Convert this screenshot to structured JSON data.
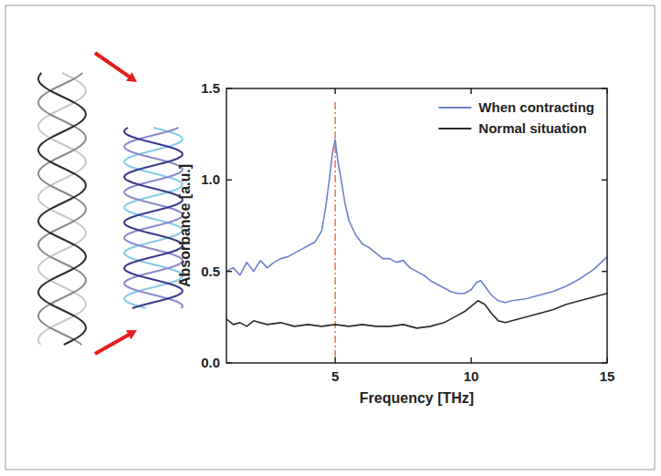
{
  "chart_data": {
    "type": "line",
    "x_label": "Frequency [THz]",
    "y_label": "Absorbance [a.u.]",
    "xlim": [
      1,
      15
    ],
    "xticks": [
      5,
      10,
      15
    ],
    "ylim": [
      0,
      1.5
    ],
    "yticks": [
      {
        "value": 0,
        "label": "0.0"
      },
      {
        "value": 0.5,
        "label": "0.5"
      },
      {
        "value": 1,
        "label": "1.0"
      },
      {
        "value": 1.5,
        "label": "1.5"
      }
    ],
    "legend": "upper right",
    "reference_x": 5,
    "series": [
      {
        "name": "When contracting",
        "color": "#6f80cc",
        "x": [
          1.0,
          1.25,
          1.5,
          1.75,
          2.0,
          2.25,
          2.5,
          2.75,
          3.0,
          3.25,
          3.5,
          3.75,
          4.0,
          4.25,
          4.5,
          4.65,
          4.8,
          4.9,
          5.0,
          5.1,
          5.2,
          5.35,
          5.5,
          5.75,
          6.0,
          6.25,
          6.5,
          6.75,
          7.0,
          7.25,
          7.5,
          7.75,
          8.0,
          8.25,
          8.5,
          8.75,
          9.0,
          9.25,
          9.5,
          9.75,
          10.0,
          10.2,
          10.35,
          10.5,
          10.75,
          11.0,
          11.25,
          11.5,
          12.0,
          12.5,
          13.0,
          13.5,
          14.0,
          14.5,
          15.0
        ],
        "values": [
          0.5,
          0.52,
          0.48,
          0.55,
          0.5,
          0.56,
          0.52,
          0.55,
          0.57,
          0.58,
          0.6,
          0.62,
          0.64,
          0.66,
          0.72,
          0.85,
          1.02,
          1.15,
          1.22,
          1.1,
          1.02,
          0.88,
          0.78,
          0.7,
          0.65,
          0.63,
          0.6,
          0.57,
          0.57,
          0.55,
          0.56,
          0.52,
          0.5,
          0.48,
          0.45,
          0.43,
          0.41,
          0.39,
          0.38,
          0.38,
          0.4,
          0.44,
          0.45,
          0.42,
          0.37,
          0.34,
          0.33,
          0.34,
          0.35,
          0.37,
          0.39,
          0.42,
          0.46,
          0.51,
          0.58
        ]
      },
      {
        "name": "Normal situation",
        "color": "#2a2a2a",
        "x": [
          1.0,
          1.25,
          1.5,
          1.75,
          2.0,
          2.5,
          3.0,
          3.5,
          4.0,
          4.5,
          5.0,
          5.5,
          6.0,
          6.5,
          7.0,
          7.5,
          8.0,
          8.5,
          9.0,
          9.25,
          9.5,
          9.75,
          10.0,
          10.25,
          10.5,
          10.75,
          11.0,
          11.25,
          11.5,
          12.0,
          12.5,
          13.0,
          13.5,
          14.0,
          14.5,
          15.0
        ],
        "values": [
          0.24,
          0.21,
          0.22,
          0.2,
          0.23,
          0.21,
          0.22,
          0.2,
          0.21,
          0.2,
          0.21,
          0.2,
          0.21,
          0.2,
          0.2,
          0.21,
          0.19,
          0.2,
          0.22,
          0.24,
          0.26,
          0.28,
          0.31,
          0.34,
          0.32,
          0.27,
          0.23,
          0.22,
          0.23,
          0.25,
          0.27,
          0.29,
          0.32,
          0.34,
          0.36,
          0.38
        ]
      }
    ]
  }
}
